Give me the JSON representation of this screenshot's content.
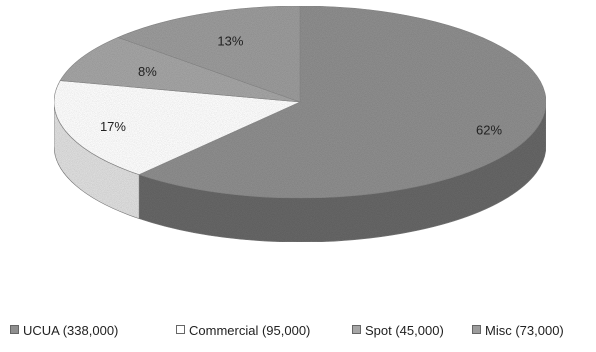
{
  "chart_data": {
    "type": "pie",
    "style": "3d",
    "legend_position": "bottom",
    "slices": [
      {
        "name": "UCUA (338,000)",
        "value": 338000,
        "pct_label": "62%",
        "color": "#8f8f8f"
      },
      {
        "name": "Commercial (95,000)",
        "value": 95000,
        "pct_label": "17%",
        "color": "#ffffff"
      },
      {
        "name": "Spot (45,000)",
        "value": 45000,
        "pct_label": "8%",
        "color": "#a6a6a6"
      },
      {
        "name": "Misc (73,000)",
        "value": 73000,
        "pct_label": "13%",
        "color": "#9c9c9c"
      }
    ]
  }
}
